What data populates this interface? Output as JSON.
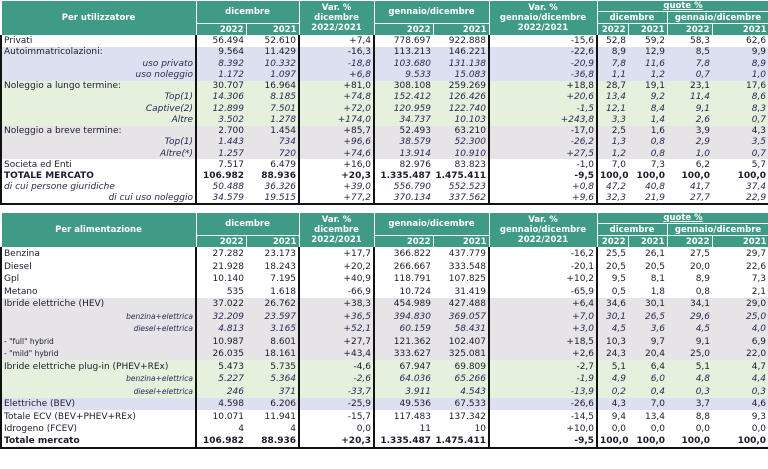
{
  "header": {
    "dicembre": "dicembre",
    "gennaio_dicembre": "gennaio/dicembre",
    "var_dic": "Var. %\ndicembre\n2022/2021",
    "var_gen": "Var. %\ngennaio/dicembre\n2022/2021",
    "quote": "quote %",
    "y2022": "2022",
    "y2021": "2021"
  },
  "colors": {
    "header": "#3f9a86",
    "lavender": "#dde0f1",
    "green": "#e4f1dd",
    "gray": "#e6e4e7"
  },
  "tables": [
    {
      "title": "Per utilizzatore",
      "rows": [
        {
          "band": "white",
          "style": "",
          "cells": [
            "Privati",
            "56.494",
            "52.610",
            "+7,4",
            "778.697",
            "922.888",
            "-15,6",
            "52,8",
            "59,2",
            "58,3",
            "62,6"
          ]
        },
        {
          "band": "lavender",
          "style": "",
          "cells": [
            "Autoimmatricolazioni:",
            "9.564",
            "11.429",
            "-16,3",
            "113.213",
            "146.221",
            "-22,6",
            "8,9",
            "12,9",
            "8,5",
            "9,9"
          ]
        },
        {
          "band": "lavender",
          "style": "sub",
          "cells": [
            "uso privato",
            "8.392",
            "10.332",
            "-18,8",
            "103.680",
            "131.138",
            "-20,9",
            "7,8",
            "11,6",
            "7,8",
            "8,9"
          ]
        },
        {
          "band": "lavender",
          "style": "sub",
          "cells": [
            "uso noleggio",
            "1.172",
            "1.097",
            "+6,8",
            "9.533",
            "15.083",
            "-36,8",
            "1,1",
            "1,2",
            "0,7",
            "1,0"
          ]
        },
        {
          "band": "green",
          "style": "",
          "cells": [
            "Noleggio a lungo termine:",
            "30.707",
            "16.964",
            "+81,0",
            "308.108",
            "259.269",
            "+18,8",
            "28,7",
            "19,1",
            "23,1",
            "17,6"
          ]
        },
        {
          "band": "green",
          "style": "sub",
          "cells": [
            "Top(1)",
            "14.306",
            "8.185",
            "+74,8",
            "152.412",
            "126.426",
            "+20,6",
            "13,4",
            "9,2",
            "11,4",
            "8,6"
          ]
        },
        {
          "band": "green",
          "style": "sub",
          "cells": [
            "Captive(2)",
            "12.899",
            "7.501",
            "+72,0",
            "120.959",
            "122.740",
            "-1,5",
            "12,1",
            "8,4",
            "9,1",
            "8,3"
          ]
        },
        {
          "band": "green",
          "style": "sub",
          "cells": [
            "Altre",
            "3.502",
            "1.278",
            "+174,0",
            "34.737",
            "10.103",
            "+243,8",
            "3,3",
            "1,4",
            "2,6",
            "0,7"
          ]
        },
        {
          "band": "gray",
          "style": "",
          "cells": [
            "Noleggio a breve termine:",
            "2.700",
            "1.454",
            "+85,7",
            "52.493",
            "63.210",
            "-17,0",
            "2,5",
            "1,6",
            "3,9",
            "4,3"
          ]
        },
        {
          "band": "gray",
          "style": "sub",
          "cells": [
            "Top(1)",
            "1.443",
            "734",
            "+96,6",
            "38.579",
            "52.300",
            "-26,2",
            "1,3",
            "0,8",
            "2,9",
            "3,5"
          ]
        },
        {
          "band": "gray",
          "style": "sub",
          "cells": [
            "Altre(*)",
            "1.257",
            "720",
            "+74,6",
            "13.914",
            "10.910",
            "+27,5",
            "1,2",
            "0,8",
            "1,0",
            "0,7"
          ]
        },
        {
          "band": "white",
          "style": "",
          "cells": [
            "Societa ed Enti",
            "7.517",
            "6.479",
            "+16,0",
            "82.976",
            "83.823",
            "-1,0",
            "7,0",
            "7,3",
            "6,2",
            "5,7"
          ]
        },
        {
          "band": "white",
          "style": "bold",
          "cells": [
            "TOTALE MERCATO",
            "106.982",
            "88.936",
            "+20,3",
            "1.335.487",
            "1.475.411",
            "-9,5",
            "100,0",
            "100,0",
            "100,0",
            "100,0"
          ]
        },
        {
          "band": "white",
          "style": "subl",
          "cells": [
            "di cui persone giuridiche",
            "50.488",
            "36.326",
            "+39,0",
            "556.790",
            "552.523",
            "+0,8",
            "47,2",
            "40,8",
            "41,7",
            "37,4"
          ]
        },
        {
          "band": "white",
          "style": "sub",
          "cells": [
            "di cui uso noleggio",
            "34.579",
            "19.515",
            "+77,2",
            "370.134",
            "337.562",
            "+9,6",
            "32,3",
            "21,9",
            "27,7",
            "22,9"
          ]
        }
      ]
    },
    {
      "title": "Per alimentazione",
      "rows": [
        {
          "band": "white",
          "style": "",
          "cells": [
            "Benzina",
            "27.282",
            "23.173",
            "+17,7",
            "366.822",
            "437.779",
            "-16,2",
            "25,5",
            "26,1",
            "27,5",
            "29,7"
          ]
        },
        {
          "band": "white",
          "style": "",
          "cells": [
            "Diesel",
            "21.928",
            "18.243",
            "+20,2",
            "266.667",
            "333.548",
            "-20,1",
            "20,5",
            "20,5",
            "20,0",
            "22,6"
          ]
        },
        {
          "band": "white",
          "style": "",
          "cells": [
            "Gpl",
            "10.140",
            "7.195",
            "+40,9",
            "118.791",
            "107.825",
            "+10,2",
            "9,5",
            "8,1",
            "8,9",
            "7,3"
          ]
        },
        {
          "band": "white",
          "style": "",
          "cells": [
            "Metano",
            "535",
            "1.618",
            "-66,9",
            "10.724",
            "31.419",
            "-65,9",
            "0,5",
            "1,8",
            "0,8",
            "2,1"
          ]
        },
        {
          "band": "gray",
          "style": "",
          "cells": [
            "Ibride elettriche (HEV)",
            "37.022",
            "26.762",
            "+38,3",
            "454.989",
            "427.488",
            "+6,4",
            "34,6",
            "30,1",
            "34,1",
            "29,0"
          ]
        },
        {
          "band": "gray",
          "style": "sub small",
          "cells": [
            "benzina+elettrica",
            "32.209",
            "23.597",
            "+36,5",
            "394.830",
            "369.057",
            "+7,0",
            "30,1",
            "26,5",
            "29,6",
            "25,0"
          ]
        },
        {
          "band": "gray",
          "style": "sub small",
          "cells": [
            "diesel+elettrica",
            "4.813",
            "3.165",
            "+52,1",
            "60.159",
            "58.431",
            "+3,0",
            "4,5",
            "3,6",
            "4,5",
            "4,0"
          ]
        },
        {
          "band": "gray",
          "style": "small",
          "cells": [
            "- \"full\" hybrid",
            "10.987",
            "8.601",
            "+27,7",
            "121.362",
            "102.407",
            "+18,5",
            "10,3",
            "9,7",
            "9,1",
            "6,9"
          ]
        },
        {
          "band": "gray",
          "style": "small",
          "cells": [
            "- \"mild\" hybrid",
            "26.035",
            "18.161",
            "+43,4",
            "333.627",
            "325.081",
            "+2,6",
            "24,3",
            "20,4",
            "25,0",
            "22,0"
          ]
        },
        {
          "band": "green",
          "style": "",
          "cells": [
            "Ibride elettriche plug-in (PHEV+REx)",
            "5.473",
            "5.735",
            "-4,6",
            "67.947",
            "69.809",
            "-2,7",
            "5,1",
            "6,4",
            "5,1",
            "4,7"
          ]
        },
        {
          "band": "green",
          "style": "sub small",
          "cells": [
            "benzina+elettrica",
            "5.227",
            "5.364",
            "-2,6",
            "64.036",
            "65.266",
            "-1,9",
            "4,9",
            "6,0",
            "4,8",
            "4,4"
          ]
        },
        {
          "band": "green",
          "style": "sub small",
          "cells": [
            "diesel+elettrica",
            "246",
            "371",
            "-33,7",
            "3.911",
            "4.543",
            "-13,9",
            "0,2",
            "0,4",
            "0,3",
            "0,3"
          ]
        },
        {
          "band": "lavender",
          "style": "",
          "cells": [
            "Elettriche (BEV)",
            "4.598",
            "6.206",
            "-25,9",
            "49.536",
            "67.533",
            "-26,6",
            "4,3",
            "7,0",
            "3,7",
            "4,6"
          ]
        },
        {
          "band": "white",
          "style": "",
          "cells": [
            "Totale ECV (BEV+PHEV+REx)",
            "10.071",
            "11.941",
            "-15,7",
            "117.483",
            "137.342",
            "-14,5",
            "9,4",
            "13,4",
            "8,8",
            "9,3"
          ]
        },
        {
          "band": "white",
          "style": "",
          "cells": [
            "Idrogeno (FCEV)",
            "4",
            "4",
            "0,0",
            "11",
            "10",
            "+10,0",
            "0,0",
            "0,0",
            "0,0",
            "0,0"
          ]
        },
        {
          "band": "white",
          "style": "bold",
          "cells": [
            "Totale mercato",
            "106.982",
            "88.936",
            "+20,3",
            "1.335.487",
            "1.475.411",
            "-9,5",
            "100,0",
            "100,0",
            "100,0",
            "100,0"
          ]
        }
      ]
    }
  ]
}
